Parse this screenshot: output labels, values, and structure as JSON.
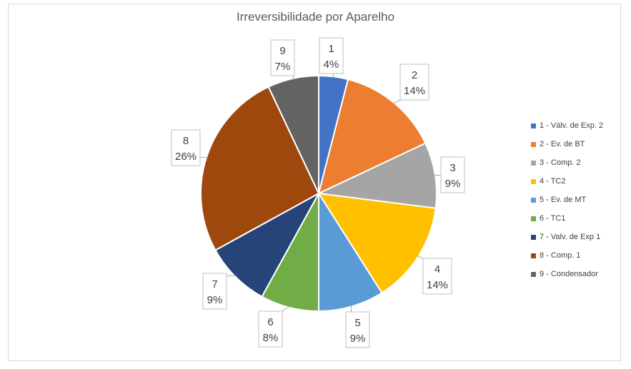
{
  "chart_data": {
    "type": "pie",
    "title": "Irreversibilidade por Aparelho",
    "slices": [
      {
        "label": "1",
        "legend": "1  - Válv. de Exp. 2",
        "value": 4,
        "percent_label": "4%",
        "color": "#4472c4"
      },
      {
        "label": "2",
        "legend": "2  - Ev. de BT",
        "value": 14,
        "percent_label": "14%",
        "color": "#ed7d31"
      },
      {
        "label": "3",
        "legend": "3  - Comp. 2",
        "value": 9,
        "percent_label": "9%",
        "color": "#a5a5a5"
      },
      {
        "label": "4",
        "legend": "4  - TC2",
        "value": 14,
        "percent_label": "14%",
        "color": "#ffc000"
      },
      {
        "label": "5",
        "legend": "5  - Ev. de MT",
        "value": 9,
        "percent_label": "9%",
        "color": "#5b9bd5"
      },
      {
        "label": "6",
        "legend": "6  - TC1",
        "value": 8,
        "percent_label": "8%",
        "color": "#70ad47"
      },
      {
        "label": "7",
        "legend": "7  - Valv. de Exp 1",
        "value": 9,
        "percent_label": "9%",
        "color": "#264478"
      },
      {
        "label": "8",
        "legend": "8  - Comp. 1",
        "value": 26,
        "percent_label": "26%",
        "color": "#9e480e"
      },
      {
        "label": "9",
        "legend": "9  - Condensador",
        "value": 7,
        "percent_label": "7%",
        "color": "#636363"
      }
    ],
    "legend_position": "right"
  }
}
